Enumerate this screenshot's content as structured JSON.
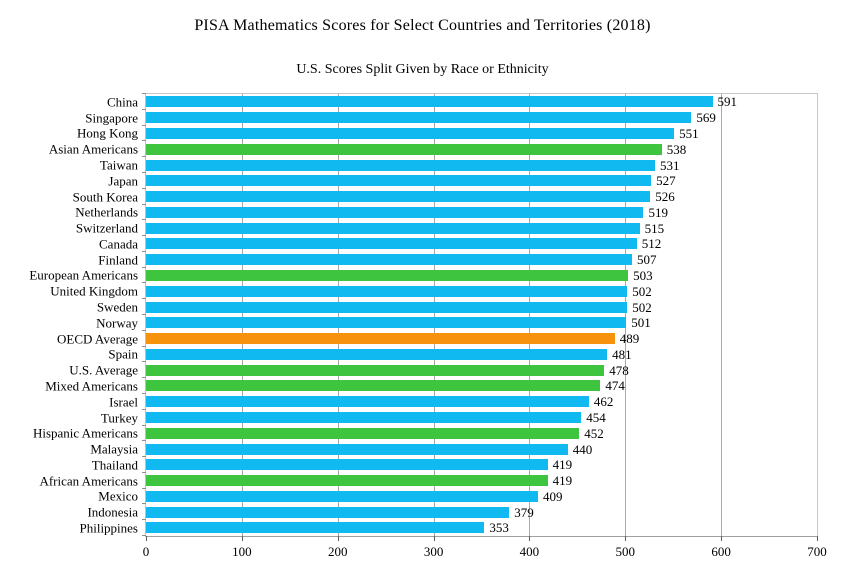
{
  "chart_data": {
    "type": "bar",
    "orientation": "horizontal",
    "title": "PISA Mathematics Scores for Select Countries and Territories (2018)",
    "subtitle": "U.S. Scores Split Given by Race or Ethnicity",
    "xlabel": "",
    "ylabel": "",
    "xlim": [
      0,
      700
    ],
    "x_ticks": [
      0,
      100,
      200,
      300,
      400,
      500,
      600,
      700
    ],
    "grid": true,
    "legend": "none",
    "colors": {
      "country": "#10B9F0",
      "us_race_group": "#3EC43E",
      "oecd_average": "#F6920E"
    },
    "rows": [
      {
        "label": "China",
        "value": 591,
        "group": "country"
      },
      {
        "label": "Singapore",
        "value": 569,
        "group": "country"
      },
      {
        "label": "Hong Kong",
        "value": 551,
        "group": "country"
      },
      {
        "label": "Asian Americans",
        "value": 538,
        "group": "us_race_group"
      },
      {
        "label": "Taiwan",
        "value": 531,
        "group": "country"
      },
      {
        "label": "Japan",
        "value": 527,
        "group": "country"
      },
      {
        "label": "South Korea",
        "value": 526,
        "group": "country"
      },
      {
        "label": "Netherlands",
        "value": 519,
        "group": "country"
      },
      {
        "label": "Switzerland",
        "value": 515,
        "group": "country"
      },
      {
        "label": "Canada",
        "value": 512,
        "group": "country"
      },
      {
        "label": "Finland",
        "value": 507,
        "group": "country"
      },
      {
        "label": "European Americans",
        "value": 503,
        "group": "us_race_group"
      },
      {
        "label": "United Kingdom",
        "value": 502,
        "group": "country"
      },
      {
        "label": "Sweden",
        "value": 502,
        "group": "country"
      },
      {
        "label": "Norway",
        "value": 501,
        "group": "country"
      },
      {
        "label": "OECD Average",
        "value": 489,
        "group": "oecd_average"
      },
      {
        "label": "Spain",
        "value": 481,
        "group": "country"
      },
      {
        "label": "U.S. Average",
        "value": 478,
        "group": "us_race_group"
      },
      {
        "label": "Mixed Americans",
        "value": 474,
        "group": "us_race_group"
      },
      {
        "label": "Israel",
        "value": 462,
        "group": "country"
      },
      {
        "label": "Turkey",
        "value": 454,
        "group": "country"
      },
      {
        "label": "Hispanic Americans",
        "value": 452,
        "group": "us_race_group"
      },
      {
        "label": "Malaysia",
        "value": 440,
        "group": "country"
      },
      {
        "label": "Thailand",
        "value": 419,
        "group": "country"
      },
      {
        "label": "African Americans",
        "value": 419,
        "group": "us_race_group"
      },
      {
        "label": "Mexico",
        "value": 409,
        "group": "country"
      },
      {
        "label": "Indonesia",
        "value": 379,
        "group": "country"
      },
      {
        "label": "Philippines",
        "value": 353,
        "group": "country"
      }
    ]
  }
}
